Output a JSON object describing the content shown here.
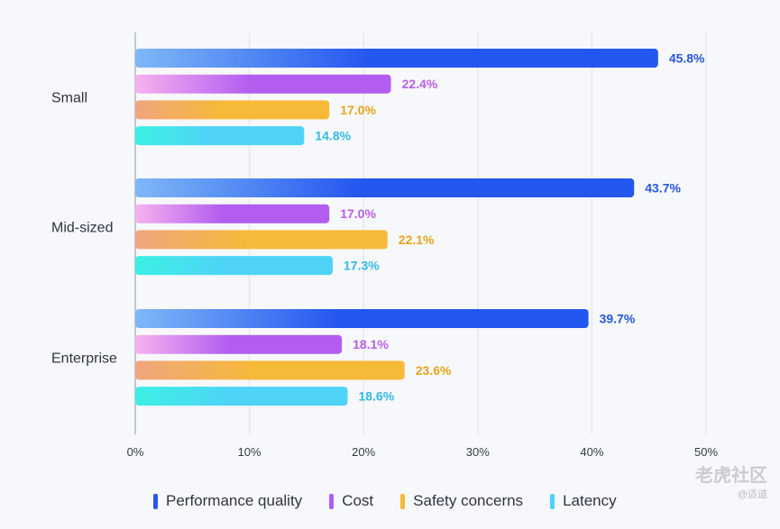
{
  "chart_data": {
    "type": "bar",
    "orientation": "horizontal",
    "categories": [
      "Small",
      "Mid-sized",
      "Enterprise"
    ],
    "series": [
      {
        "name": "Performance quality",
        "values": [
          45.8,
          43.7,
          39.7
        ],
        "color": "#2456f0",
        "gradient_start": "#7fb8f7"
      },
      {
        "name": "Cost",
        "values": [
          22.4,
          17.0,
          18.1
        ],
        "color": "#b25df0",
        "gradient_start": "#f7b2ee"
      },
      {
        "name": "Safety concerns",
        "values": [
          17.0,
          22.1,
          23.6
        ],
        "color": "#f7b938",
        "gradient_start": "#f0a57e"
      },
      {
        "name": "Latency",
        "values": [
          14.8,
          17.3,
          18.6
        ],
        "color": "#4ed3f7",
        "gradient_start": "#3df0e3"
      }
    ],
    "value_labels": [
      [
        "45.8%",
        "22.4%",
        "17.0%",
        "14.8%"
      ],
      [
        "43.7%",
        "17.0%",
        "22.1%",
        "17.3%"
      ],
      [
        "39.7%",
        "18.1%",
        "23.6%",
        "18.6%"
      ]
    ],
    "label_colors": [
      "#2456d8",
      "#b95ee8",
      "#e8a31a",
      "#32b9e6"
    ],
    "xlim": [
      0,
      50
    ],
    "x_ticks": [
      "0%",
      "10%",
      "20%",
      "30%",
      "40%",
      "50%"
    ],
    "grid": true,
    "legend_position": "bottom",
    "title": "",
    "xlabel": "",
    "ylabel": ""
  },
  "watermark": {
    "text": "老虎社区",
    "sub": "@适道"
  }
}
